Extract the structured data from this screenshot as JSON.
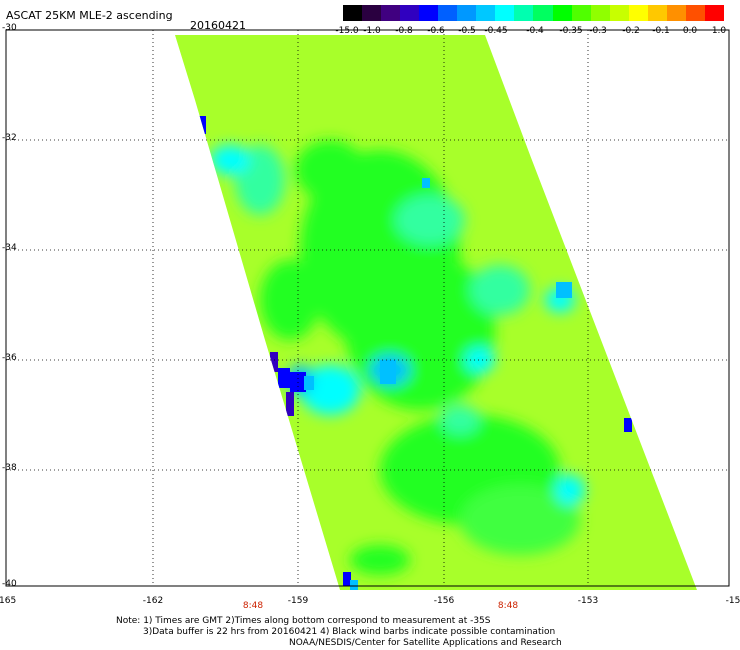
{
  "title": "ASCAT 25KM MLE-2 ascending",
  "date": "20160421",
  "colorbar": {
    "labels": [
      "-15.0",
      "-1.0",
      "-0.8",
      "-0.6",
      "-0.5",
      "-0.45",
      "-0.4",
      "-0.35",
      "-0.3",
      "-0.2",
      "-0.1",
      "0.0",
      "1.0"
    ],
    "colors": [
      "#000000",
      "#2a0040",
      "#400080",
      "#3000c0",
      "#0000ff",
      "#0060ff",
      "#0098ff",
      "#00c8ff",
      "#00ffff",
      "#00ffb0",
      "#00ff60",
      "#00ff00",
      "#50ff00",
      "#90ff00",
      "#c8ff00",
      "#ffff00",
      "#ffc800",
      "#ff9000",
      "#ff5000",
      "#ff0000"
    ]
  },
  "map": {
    "lat_labels": [
      "-30",
      "-32",
      "-34",
      "-36",
      "-38",
      "-40"
    ],
    "lon_labels": [
      "-165",
      "-162",
      "-159",
      "-156",
      "-153",
      "-15"
    ],
    "time_labels": [
      "8:48",
      "8:48"
    ],
    "palette": {
      "base": "#a8ff2a",
      "green": "#20ff20",
      "green2": "#40ff40",
      "aqua": "#30ffa0",
      "cyan": "#00ffff",
      "lblue": "#00c0ff",
      "blue": "#0000ff",
      "purple": "#3000c0"
    }
  },
  "notes": [
    "Note: 1) Times are GMT 2)Times along bottom correspond to measurement at -35S",
    "3)Data buffer is 22 hrs from 20160421 4) Black wind barbs indicate possible contamination",
    "NOAA/NESDIS/Center for Satellite Applications and Research"
  ]
}
